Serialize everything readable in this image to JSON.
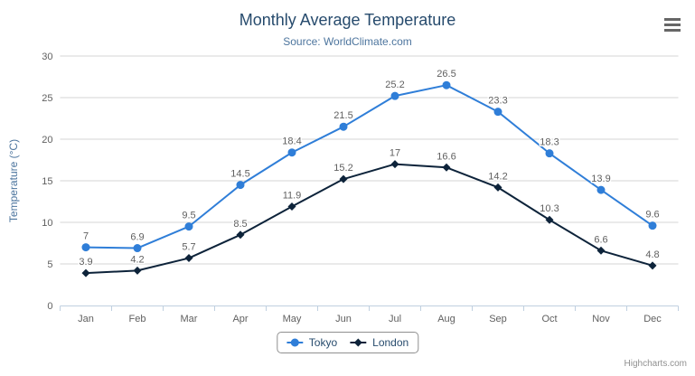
{
  "chart_data": {
    "type": "line",
    "title": "Monthly Average Temperature",
    "subtitle": "Source: WorldClimate.com",
    "categories": [
      "Jan",
      "Feb",
      "Mar",
      "Apr",
      "May",
      "Jun",
      "Jul",
      "Aug",
      "Sep",
      "Oct",
      "Nov",
      "Dec"
    ],
    "series": [
      {
        "name": "Tokyo",
        "color": "#2f7ed8",
        "marker": "circle",
        "values": [
          7,
          6.9,
          9.5,
          14.5,
          18.4,
          21.5,
          25.2,
          26.5,
          23.3,
          18.3,
          13.9,
          9.6
        ]
      },
      {
        "name": "London",
        "color": "#0d233a",
        "marker": "diamond",
        "values": [
          3.9,
          4.2,
          5.7,
          8.5,
          11.9,
          15.2,
          17,
          16.6,
          14.2,
          10.3,
          6.6,
          4.8
        ]
      }
    ],
    "xlabel": "",
    "ylabel": "Temperature (°C)",
    "ylim": [
      0,
      30
    ],
    "ytick_interval": 5,
    "grid": true,
    "legend_position": "bottom-center",
    "data_labels": true
  },
  "credits": {
    "label": "Highcharts.com"
  },
  "export_menu": {
    "icon": "hamburger-menu-icon"
  },
  "colors": {
    "title": "#274b6d",
    "subtitle": "#4d759e",
    "axis_title": "#4d759e",
    "tick_label": "#606060",
    "data_label": "#606060",
    "gridline": "#d4d4d4",
    "axis_line": "#c0d0e0",
    "legend_text": "#274b6d",
    "legend_border": "#909090",
    "credits": "#909090",
    "menu_icon": "#666666",
    "background": "#ffffff"
  }
}
